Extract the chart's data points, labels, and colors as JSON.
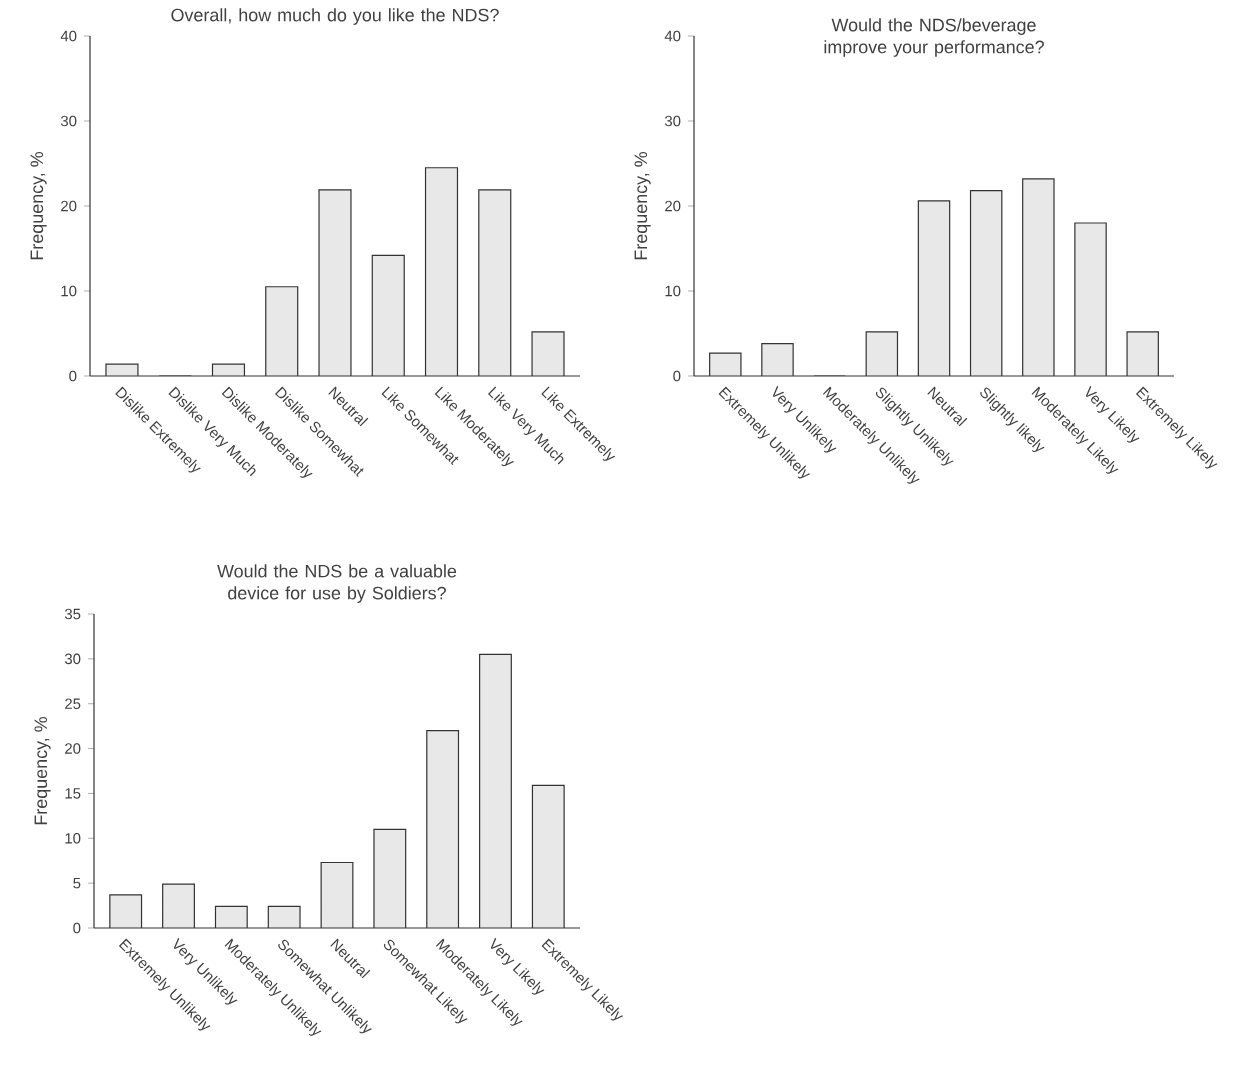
{
  "chart_data": [
    {
      "type": "bar",
      "title": "Overall, how much do you like the NDS?",
      "ylabel": "Frequency, %",
      "categories": [
        "Dislike Extremely",
        "Dislike Very Much",
        "Dislike Moderately",
        "Dislike Somewhat",
        "Neutral",
        "Like Somewhat",
        "Like Moderately",
        "Like Very Much",
        "Like Extremely"
      ],
      "values": [
        1.4,
        0,
        1.4,
        10.5,
        21.9,
        14.2,
        24.5,
        21.9,
        5.2
      ],
      "color": "#e8e8e8",
      "ylim": [
        0,
        40
      ],
      "yticks": [
        0,
        10,
        20,
        30,
        40
      ],
      "grid": false
    },
    {
      "type": "bar",
      "title": "Would the NDS/beverage improve your performance?",
      "ylabel": "Frequency, %",
      "categories": [
        "Extremely Unlikely",
        "Very Unlikely",
        "Moderately Unlikely",
        "Slightly Unlikely",
        "Neutral",
        "Slightly likely",
        "Moderately Likely",
        "Very Likely",
        "Extremely Likely"
      ],
      "values": [
        2.7,
        3.8,
        0,
        5.2,
        20.6,
        21.8,
        23.2,
        18.0,
        5.2
      ],
      "color": "#e8e8e8",
      "ylim": [
        0,
        40
      ],
      "yticks": [
        0,
        10,
        20,
        30,
        40
      ],
      "grid": false
    },
    {
      "type": "bar",
      "title": "Would the NDS be a valuable device for use by Soldiers?",
      "ylabel": "Frequency, %",
      "categories": [
        "Extremely Unlikely",
        "Very Unlikely",
        "Moderately Unlikely",
        "Somewhat Unlikely",
        "Neutral",
        "Somewhat Likely",
        "Moderately Likely",
        "Very Likely",
        "Extremely Likely"
      ],
      "values": [
        3.7,
        4.9,
        2.4,
        2.4,
        7.3,
        11.0,
        22.0,
        30.5,
        15.9
      ],
      "color": "#e8e8e8",
      "ylim": [
        0,
        35
      ],
      "yticks": [
        0,
        5,
        10,
        15,
        20,
        25,
        30,
        35
      ],
      "grid": false
    }
  ]
}
